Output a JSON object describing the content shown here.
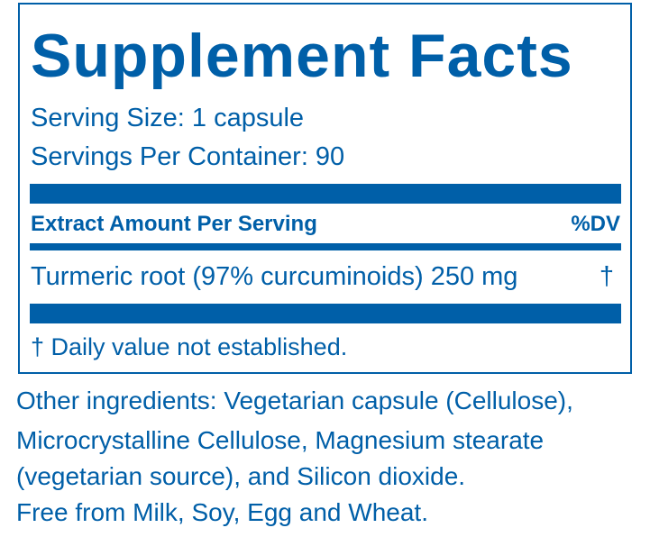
{
  "title": "Supplement Facts",
  "serving_size": "Serving Size: 1 capsule",
  "servings_per_container": "Servings Per Container: 90",
  "table": {
    "header_left": "Extract Amount Per Serving",
    "header_right": "%DV",
    "rows": [
      {
        "ingredient": "Turmeric root (97% curcuminoids) 250 mg",
        "dv": "†"
      }
    ]
  },
  "footnote": "† Daily value not established.",
  "other_ingredients": [
    "Other ingredients: Vegetarian capsule (Cellulose),",
    "Microcrystalline Cellulose, Magnesium stearate",
    "(vegetarian source), and Silicon dioxide.",
    "Free from Milk, Soy, Egg and Wheat."
  ],
  "colors": {
    "label_blue": "#005fa8"
  }
}
